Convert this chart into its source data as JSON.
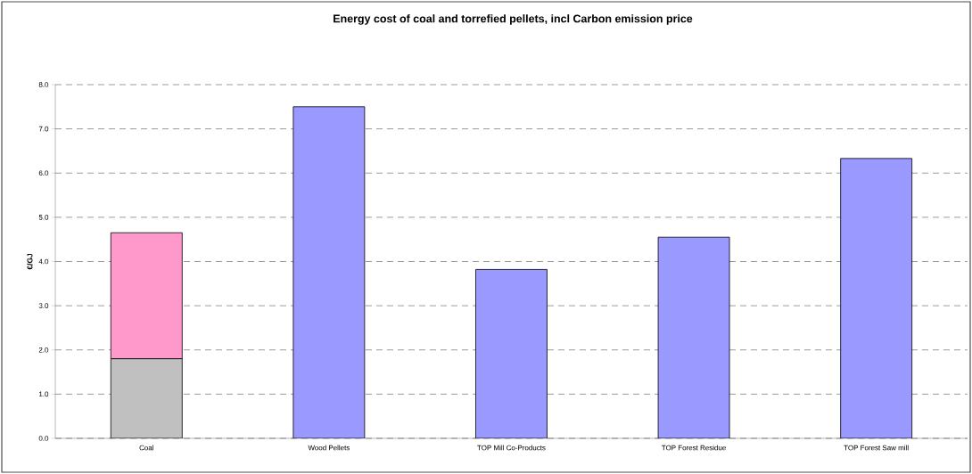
{
  "chart_data": {
    "type": "bar",
    "title": "Energy cost of coal and torrefied pellets, incl Carbon emission price",
    "ylabel": "€/GJ",
    "categories": [
      "Coal",
      "Wood Pellets",
      "TOP Mill Co-Products",
      "TOP Forest Residue",
      "TOP Forest Saw mill"
    ],
    "stacked": true,
    "series": [
      {
        "color": "#c0c0c0",
        "values": [
          1.8,
          null,
          null,
          null,
          null
        ]
      },
      {
        "color": "#ff99cc",
        "values": [
          2.85,
          null,
          null,
          null,
          null
        ]
      },
      {
        "color": "#9999ff",
        "values": [
          null,
          7.5,
          3.82,
          4.55,
          6.33
        ]
      }
    ],
    "ylim": [
      0,
      8
    ],
    "yticks": [
      {
        "value": 0,
        "label": "0.0"
      },
      {
        "value": 1,
        "label": "1.0"
      },
      {
        "value": 2,
        "label": "2.0"
      },
      {
        "value": 3,
        "label": "3.0"
      },
      {
        "value": 4,
        "label": "4.0"
      },
      {
        "value": 5,
        "label": "5.0"
      },
      {
        "value": 6,
        "label": "6.0"
      },
      {
        "value": 7,
        "label": "7.0"
      },
      {
        "value": 8,
        "label": "8.0"
      }
    ],
    "grid": "y"
  }
}
